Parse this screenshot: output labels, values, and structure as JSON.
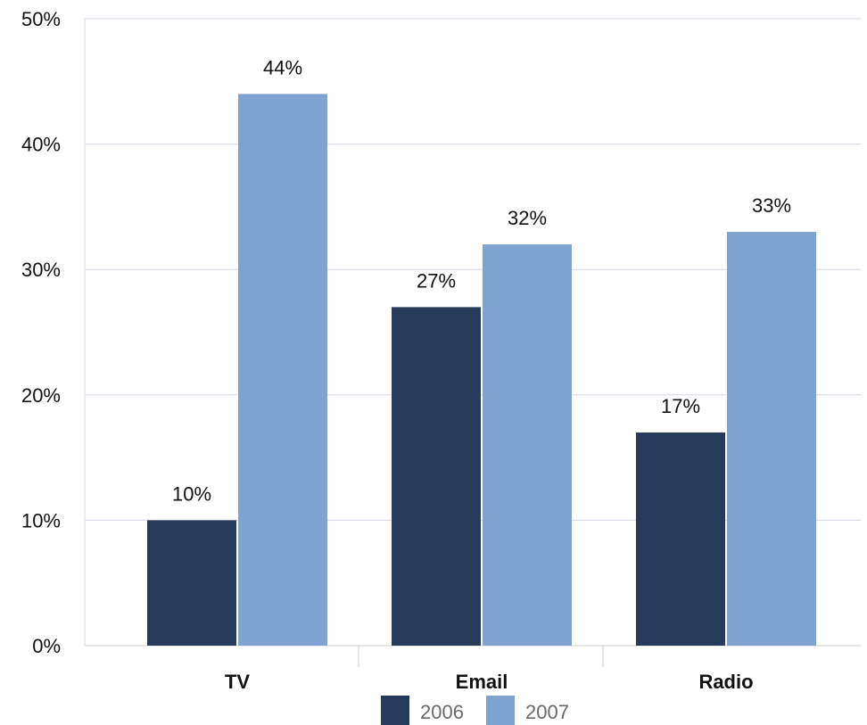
{
  "chart_data": {
    "type": "bar",
    "title": "",
    "xlabel": "",
    "ylabel": "",
    "categories": [
      "TV",
      "Email",
      "Radio"
    ],
    "series": [
      {
        "name": "2006",
        "values": [
          10,
          27,
          17
        ],
        "labels": [
          "10%",
          "27%",
          "17%"
        ],
        "color": "#263b5a"
      },
      {
        "name": "2007",
        "values": [
          44,
          32,
          33
        ],
        "labels": [
          "44%",
          "32%",
          "33%"
        ],
        "color": "#7ea3d1"
      }
    ],
    "ylim": [
      0,
      50
    ],
    "yticks": [
      0,
      10,
      20,
      30,
      40,
      50
    ],
    "ytick_labels": [
      "0%",
      "10%",
      "20%",
      "30%",
      "40%",
      "50%"
    ],
    "grid": true,
    "legend_position": "bottom-center"
  }
}
